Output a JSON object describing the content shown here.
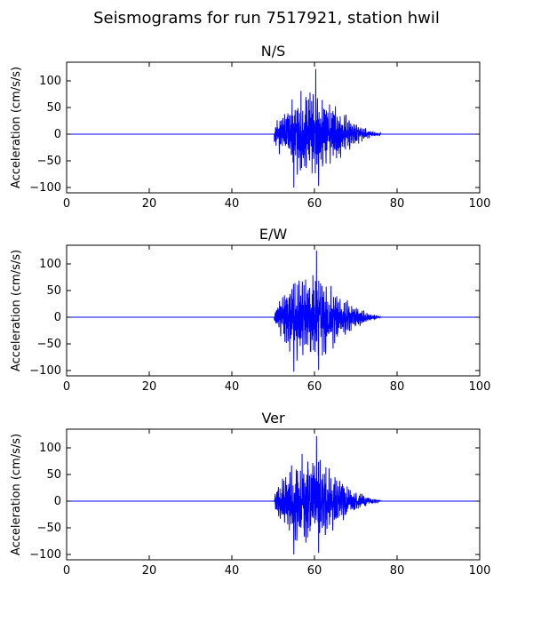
{
  "figure": {
    "suptitle": "Seismograms for run 7517921, station hwil"
  },
  "colors": {
    "trace": "#0000ff",
    "axes": "#000000",
    "background": "#ffffff"
  },
  "chart_data": [
    {
      "type": "line",
      "title": "N/S",
      "xlabel": "",
      "ylabel": "Acceleration (cm/s/s)",
      "xlim": [
        0,
        100
      ],
      "ylim": [
        -110,
        135
      ],
      "xticks": [
        0,
        20,
        40,
        60,
        80,
        100
      ],
      "yticks": [
        -100,
        -50,
        0,
        50,
        100
      ],
      "grid": false,
      "signal": {
        "baseline_until": 50,
        "onset": 50.3,
        "peak_time": 60.3,
        "decay_end": 76,
        "max": 122,
        "min": -100
      }
    },
    {
      "type": "line",
      "title": "E/W",
      "xlabel": "",
      "ylabel": "Acceleration (cm/s/s)",
      "xlim": [
        0,
        100
      ],
      "ylim": [
        -110,
        135
      ],
      "xticks": [
        0,
        20,
        40,
        60,
        80,
        100
      ],
      "yticks": [
        -100,
        -50,
        0,
        50,
        100
      ],
      "grid": false,
      "signal": {
        "baseline_until": 50,
        "onset": 50.3,
        "peak_time": 60.5,
        "decay_end": 76,
        "max": 125,
        "min": -102
      }
    },
    {
      "type": "line",
      "title": "Ver",
      "xlabel": "",
      "ylabel": "Acceleration (cm/s/s)",
      "xlim": [
        0,
        100
      ],
      "ylim": [
        -110,
        135
      ],
      "xticks": [
        0,
        20,
        40,
        60,
        80,
        100
      ],
      "yticks": [
        -100,
        -50,
        0,
        50,
        100
      ],
      "grid": false,
      "signal": {
        "baseline_until": 50,
        "onset": 50.3,
        "peak_time": 60.5,
        "decay_end": 76,
        "max": 122,
        "min": -100
      }
    }
  ]
}
